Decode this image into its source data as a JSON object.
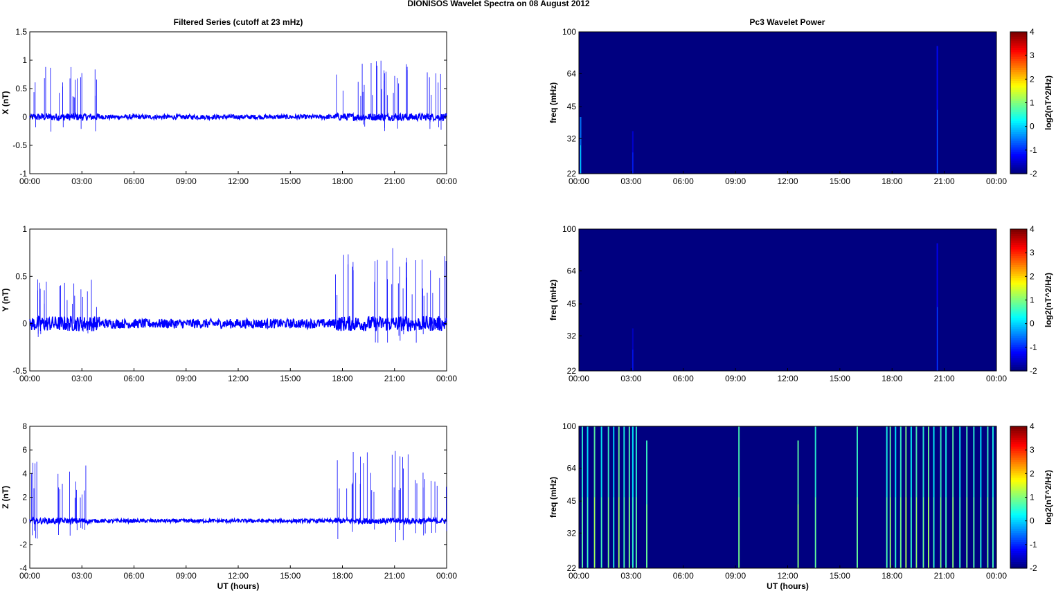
{
  "figure": {
    "suptitle": "DIONISOS Wavelet Spectra on 08 August    2012",
    "left_title": "Filtered Series (cutoff at 23 mHz)",
    "right_title": "Pc3 Wavelet Power",
    "xlabel": "UT (hours)"
  },
  "chart_data": [
    {
      "type": "line",
      "ylabel": "X (nT)",
      "x_ticks": [
        "00:00",
        "03:00",
        "06:00",
        "09:00",
        "12:00",
        "15:00",
        "18:00",
        "21:00",
        "00:00"
      ],
      "ylim": [
        -1,
        1.5
      ],
      "y_ticks": [
        "-1",
        "-0.5",
        "0",
        "0.5",
        "1",
        "1.5"
      ],
      "y_tick_values": [
        -1,
        -0.5,
        0,
        0.5,
        1,
        1.5
      ],
      "series_color": "#0000ff",
      "noise_amplitude": 0.04,
      "spike_bursts": [
        [
          0.1,
          4.0,
          0.9
        ],
        [
          17.6,
          24.0,
          1.05
        ]
      ]
    },
    {
      "type": "line",
      "ylabel": "Y (nT)",
      "x_ticks": [
        "00:00",
        "03:00",
        "06:00",
        "09:00",
        "12:00",
        "15:00",
        "18:00",
        "21:00",
        "00:00"
      ],
      "ylim": [
        -0.5,
        1
      ],
      "y_ticks": [
        "-0.5",
        "0",
        "0.5",
        "1"
      ],
      "y_tick_values": [
        -0.5,
        0,
        0.5,
        1
      ],
      "series_color": "#0000ff",
      "noise_amplitude": 0.05,
      "spike_bursts": [
        [
          0.1,
          4.0,
          0.5
        ],
        [
          17.6,
          24.0,
          0.8
        ]
      ]
    },
    {
      "type": "line",
      "ylabel": "Z (nT)",
      "xlabel": "UT (hours)",
      "x_ticks": [
        "00:00",
        "03:00",
        "06:00",
        "09:00",
        "12:00",
        "15:00",
        "18:00",
        "21:00",
        "00:00"
      ],
      "ylim": [
        -4,
        8
      ],
      "y_ticks": [
        "-4",
        "-2",
        "0",
        "2",
        "4",
        "6",
        "8"
      ],
      "y_tick_values": [
        -4,
        -2,
        0,
        2,
        4,
        6,
        8
      ],
      "series_color": "#0000ff",
      "noise_amplitude": 0.15,
      "spike_bursts": [
        [
          0.1,
          3.4,
          5.2
        ],
        [
          17.6,
          24.0,
          6.0
        ]
      ]
    },
    {
      "type": "heatmap",
      "ylabel": "freq (mHz)",
      "x_ticks": [
        "00:00",
        "03:00",
        "06:00",
        "09:00",
        "12:00",
        "15:00",
        "18:00",
        "21:00",
        "00:00"
      ],
      "y_ticks": [
        "22",
        "32",
        "45",
        "64",
        "100"
      ],
      "y_tick_values": [
        22,
        32,
        45,
        64,
        100
      ],
      "yscale": "log",
      "ylim": [
        22,
        100
      ],
      "colorbar_label": "log2(nT^2/Hz)",
      "colorbar_ticks": [
        "-2",
        "-1",
        "0",
        "1",
        "2",
        "3",
        "4"
      ],
      "clim": [
        -2,
        4
      ],
      "colormap": "jet",
      "background_level": -2,
      "streaks": [
        [
          0.1,
          0.4,
          -0.5
        ],
        [
          3.1,
          0.3,
          -1.5
        ],
        [
          20.6,
          0.9,
          -1.2
        ]
      ]
    },
    {
      "type": "heatmap",
      "ylabel": "freq (mHz)",
      "x_ticks": [
        "00:00",
        "03:00",
        "06:00",
        "09:00",
        "12:00",
        "15:00",
        "18:00",
        "21:00",
        "00:00"
      ],
      "y_ticks": [
        "22",
        "32",
        "45",
        "64",
        "100"
      ],
      "y_tick_values": [
        22,
        32,
        45,
        64,
        100
      ],
      "yscale": "log",
      "ylim": [
        22,
        100
      ],
      "colorbar_label": "log2(nT^2/Hz)",
      "colorbar_ticks": [
        "-2",
        "-1",
        "0",
        "1",
        "2",
        "3",
        "4"
      ],
      "clim": [
        -2,
        4
      ],
      "colormap": "jet",
      "background_level": -2,
      "streaks": [
        [
          3.1,
          0.3,
          -1.6
        ],
        [
          20.6,
          0.9,
          -1.3
        ]
      ]
    },
    {
      "type": "heatmap",
      "ylabel": "freq (mHz)",
      "xlabel": "UT (hours)",
      "x_ticks": [
        "00:00",
        "03:00",
        "06:00",
        "09:00",
        "12:00",
        "15:00",
        "18:00",
        "21:00",
        "00:00"
      ],
      "y_ticks": [
        "22",
        "32",
        "45",
        "64",
        "100"
      ],
      "y_tick_values": [
        22,
        32,
        45,
        64,
        100
      ],
      "yscale": "log",
      "ylim": [
        22,
        100
      ],
      "colorbar_label": "log2(nT^2/Hz)",
      "colorbar_ticks": [
        "-2",
        "-1",
        "0",
        "1",
        "2",
        "3",
        "4"
      ],
      "clim": [
        -2,
        4
      ],
      "colormap": "jet",
      "background_level": -2,
      "streaks": [
        [
          0.2,
          1,
          0.5
        ],
        [
          0.5,
          1,
          0.2
        ],
        [
          0.9,
          1,
          0.8
        ],
        [
          1.3,
          1,
          0.3
        ],
        [
          1.7,
          1,
          0.6
        ],
        [
          2.0,
          1,
          0.1
        ],
        [
          2.3,
          1,
          0.9
        ],
        [
          2.6,
          1,
          0.4
        ],
        [
          2.9,
          1,
          0.7
        ],
        [
          3.1,
          1,
          0.2
        ],
        [
          3.3,
          1,
          0.5
        ],
        [
          3.9,
          0.9,
          0.6
        ],
        [
          9.2,
          1,
          0.7
        ],
        [
          12.6,
          0.9,
          0.8
        ],
        [
          13.6,
          1,
          0.5
        ],
        [
          16.0,
          1,
          0.6
        ],
        [
          17.7,
          1,
          0.4
        ],
        [
          17.9,
          1,
          0.8
        ],
        [
          18.2,
          1,
          0.2
        ],
        [
          18.5,
          1,
          0.6
        ],
        [
          18.8,
          1,
          1.0
        ],
        [
          19.1,
          1,
          0.3
        ],
        [
          19.4,
          1,
          0.7
        ],
        [
          19.8,
          1,
          0.5
        ],
        [
          20.1,
          1,
          0.9
        ],
        [
          20.4,
          1,
          0.3
        ],
        [
          20.8,
          1,
          0.6
        ],
        [
          21.1,
          1,
          0.4
        ],
        [
          21.5,
          1,
          0.8
        ],
        [
          21.9,
          1,
          0.3
        ],
        [
          22.3,
          1,
          0.7
        ],
        [
          22.7,
          1,
          0.5
        ],
        [
          23.1,
          1,
          0.2
        ],
        [
          23.5,
          1,
          0.6
        ],
        [
          23.8,
          1,
          0.4
        ]
      ]
    }
  ]
}
